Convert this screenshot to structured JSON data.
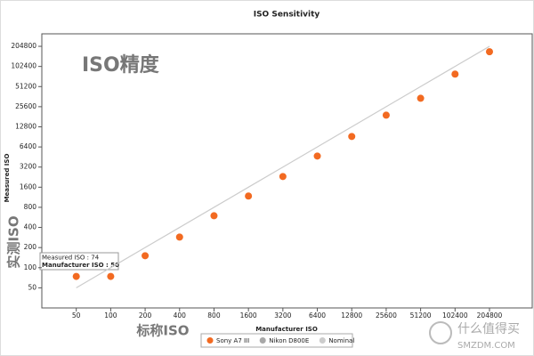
{
  "chart_data": {
    "type": "scatter",
    "title": "ISO Sensitivity",
    "x_label": "Manufacturer ISO",
    "y_label": "Measured ISO",
    "annotations": [
      "ISO精度",
      "实测ISO",
      "标称ISO",
      "Measured ISO : 74",
      "Manufacturer ISO : 50"
    ],
    "log_scale": true,
    "x": [
      50,
      100,
      200,
      400,
      800,
      1600,
      3200,
      6400,
      12800,
      25600,
      51200,
      102400,
      204800
    ],
    "series": [
      {
        "name": "Sony A7 III",
        "color": "#f26a21",
        "values": [
          74,
          74,
          151,
          287,
          598,
          1180,
          2310,
          4680,
          9180,
          19100,
          34200,
          78700,
          170000
        ]
      },
      {
        "name": "Nikon D800E",
        "color": "#a8a8a8",
        "values": [
          null,
          null,
          null,
          null,
          null,
          null,
          null,
          null,
          null,
          null,
          null,
          null,
          null
        ]
      },
      {
        "name": "Nominal",
        "color": "#cccccc",
        "values": [
          50,
          100,
          200,
          400,
          800,
          1600,
          3200,
          6400,
          12800,
          25600,
          51200,
          102400,
          204800
        ]
      }
    ],
    "xlim": [
      25,
      484000
    ],
    "ylim": [
      25,
      315000
    ],
    "xticks": [
      50,
      100,
      200,
      400,
      800,
      1600,
      3200,
      6400,
      12800,
      25600,
      51200,
      102400,
      204800
    ],
    "yticks": [
      50,
      100,
      200,
      400,
      800,
      1600,
      3200,
      6400,
      12800,
      25600,
      51200,
      102400,
      204800
    ],
    "grid": false
  },
  "watermark": [
    "什么值得买",
    "SMZDM.COM"
  ]
}
